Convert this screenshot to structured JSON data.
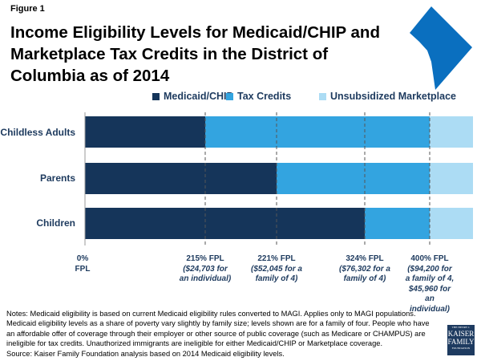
{
  "figure_label": "Figure 1",
  "title": "Income Eligibility Levels for Medicaid/CHIP and Marketplace Tax Credits in the District of Columbia as of 2014",
  "map_icon": "district-of-columbia-map",
  "logo": {
    "line1": "THE HENRY J.",
    "line2": "KAISER",
    "line3": "FAMILY",
    "line4": "FOUNDATION"
  },
  "colors": {
    "medicaid": "#15355a",
    "tax_credits": "#33a4e0",
    "unsubsidized": "#acdcf4",
    "map": "#0a6fbf"
  },
  "chart_data": {
    "type": "bar",
    "orientation": "horizontal-stacked",
    "title": "Income Eligibility Levels for Medicaid/CHIP and Marketplace Tax Credits in the District of Columbia as of 2014",
    "categories": [
      "Childless Adults",
      "Parents",
      "Children"
    ],
    "legend": [
      "Medicaid/CHIP",
      "Tax Credits",
      "Unsubsidized Marketplace"
    ],
    "legend_placement": "top",
    "unit": "% FPL",
    "series": [
      {
        "name": "Medicaid/CHIP",
        "upper_limit": [
          215,
          221,
          324
        ]
      },
      {
        "name": "Tax Credits",
        "upper_limit": [
          400,
          400,
          400
        ]
      },
      {
        "name": "Unsubsidized Marketplace",
        "upper_limit": [
          "400+",
          "400+",
          "400+"
        ]
      }
    ],
    "markers": [
      {
        "value": 0,
        "label": "0%",
        "sub": "FPL"
      },
      {
        "value": 215,
        "label": "215% FPL",
        "sub": "($24,703 for an individual)"
      },
      {
        "value": 221,
        "label": "221% FPL",
        "sub": "($52,045 for a family of 4)"
      },
      {
        "value": 324,
        "label": "324% FPL",
        "sub": "($76,302 for a family of 4)"
      },
      {
        "value": 400,
        "label": "400% FPL",
        "sub": "($94,200 for a family of 4, $45,960 for an individual)"
      }
    ]
  },
  "notes": "Notes: Medicaid eligibility is based on current Medicaid eligibility rules converted to MAGI. Applies only to MAGI populations. Medicaid eligibility levels as a share of poverty vary slightly by family size; levels shown are for a family of four. People who have an affordable offer of coverage through their employer or other source of public coverage (such as Medicare or CHAMPUS) are ineligible for tax credits. Unauthorized immigrants are ineligible for either Medicaid/CHIP or Marketplace coverage.",
  "source": "Source: Kaiser Family Foundation analysis based on 2014 Medicaid eligibility levels."
}
